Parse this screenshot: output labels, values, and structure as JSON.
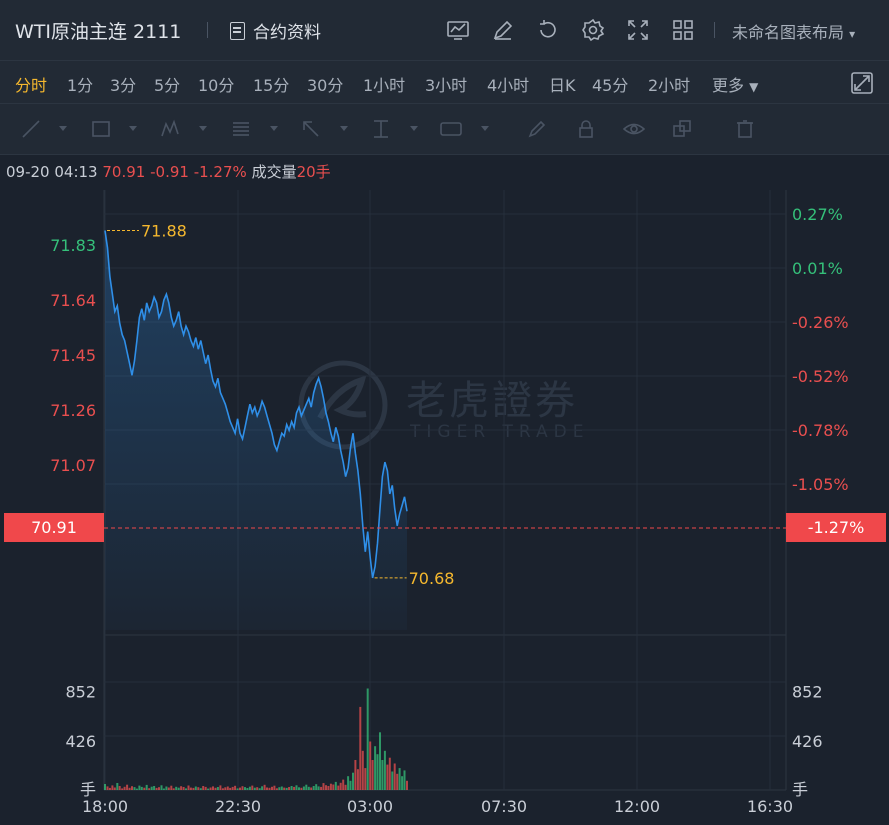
{
  "header": {
    "title": "WTI原油主连 2111",
    "contract_label": "合约资料",
    "layout_label": "未命名图表布局"
  },
  "periods": [
    "分时",
    "1分",
    "3分",
    "5分",
    "10分",
    "15分",
    "30分",
    "1小时",
    "3小时",
    "4小时",
    "日K",
    "45分",
    "2小时",
    "更多"
  ],
  "info": {
    "datetime": "09-20 04:13",
    "price": "70.91",
    "change": "-0.91",
    "change_pct": "-1.27%",
    "volume_label": "成交量",
    "volume": "20手"
  },
  "watermark": {
    "cn": "老虎證券",
    "en": "TIGER TRADE"
  },
  "colors": {
    "up": "#35c07a",
    "down": "#e94f4f",
    "line": "#2f8fe8",
    "accent": "#f5b82e",
    "current": "#f0484b"
  },
  "chart_data": {
    "type": "line",
    "x_ticks": [
      "18:00",
      "22:30",
      "03:00",
      "07:30",
      "12:00",
      "16:30"
    ],
    "price_ticks": [
      "71.83",
      "71.64",
      "71.45",
      "71.26",
      "71.07"
    ],
    "pct_ticks": [
      "0.27%",
      "0.01%",
      "-0.26%",
      "-0.52%",
      "-0.78%",
      "-1.05%"
    ],
    "volume_ticks": [
      "852",
      "426"
    ],
    "volume_unit": "手",
    "high_label": "71.88",
    "low_label": "70.68",
    "current_price": "70.91",
    "current_pct": "-1.27%",
    "ylim": [
      70.5,
      72.02
    ],
    "series": [
      {
        "values": [
          71.88,
          71.82,
          71.72,
          71.66,
          71.6,
          71.62,
          71.56,
          71.52,
          71.5,
          71.46,
          71.42,
          71.38,
          71.43,
          71.5,
          71.58,
          71.61,
          71.57,
          71.63,
          71.6,
          71.62,
          71.65,
          71.63,
          71.58,
          71.6,
          71.64,
          71.66,
          71.63,
          71.58,
          71.55,
          71.57,
          71.6,
          71.55,
          71.52,
          71.55,
          71.53,
          71.5,
          71.48,
          71.51,
          71.47,
          71.5,
          71.46,
          71.42,
          71.45,
          71.4,
          71.36,
          71.34,
          71.37,
          71.32,
          71.3,
          71.28,
          71.25,
          71.22,
          71.2,
          71.18,
          71.23,
          71.18,
          71.16,
          71.2,
          71.24,
          71.28,
          71.25,
          71.27,
          71.24,
          71.26,
          71.29,
          71.27,
          71.24,
          71.21,
          71.18,
          71.14,
          71.12,
          71.15,
          71.18,
          71.17,
          71.21,
          71.19,
          71.22,
          71.2,
          71.25,
          71.27,
          71.24,
          71.26,
          71.28,
          71.3,
          71.27,
          71.32,
          71.35,
          71.37,
          71.34,
          71.3,
          71.25,
          71.22,
          71.18,
          71.15,
          71.2,
          71.17,
          71.12,
          71.08,
          71.03,
          71.06,
          71.13,
          71.18,
          71.11,
          71.05,
          70.97,
          70.86,
          70.77,
          70.84,
          70.75,
          70.68,
          70.72,
          70.8,
          70.92,
          71.03,
          71.08,
          71.05,
          70.97,
          71.0,
          70.92,
          70.86,
          70.9,
          70.93,
          70.96,
          70.91
        ]
      },
      {
        "values": [
          52,
          31,
          18,
          40,
          22,
          61,
          35,
          14,
          28,
          46,
          19,
          33,
          25,
          12,
          38,
          27,
          20,
          44,
          16,
          29,
          35,
          18,
          24,
          41,
          13,
          30,
          22,
          37,
          15,
          28,
          20,
          33,
          26,
          14,
          39,
          21,
          18,
          30,
          24,
          16,
          35,
          27,
          12,
          22,
          31,
          19,
          26,
          40,
          15,
          23,
          30,
          18,
          27,
          36,
          14,
          21,
          33,
          25,
          17,
          29,
          38,
          20,
          24,
          16,
          32,
          45,
          22,
          19,
          28,
          37,
          15,
          24,
          30,
          21,
          18,
          26,
          35,
          27,
          41,
          23,
          19,
          30,
          46,
          28,
          22,
          35,
          50,
          31,
          27,
          60,
          42,
          35,
          55,
          48,
          70,
          38,
          62,
          90,
          45,
          120,
          80,
          150,
          260,
          180,
          720,
          340,
          190,
          880,
          420,
          260,
          380,
          310,
          500,
          260,
          340,
          220,
          280,
          160,
          230,
          140,
          190,
          120,
          170,
          80
        ]
      }
    ]
  }
}
